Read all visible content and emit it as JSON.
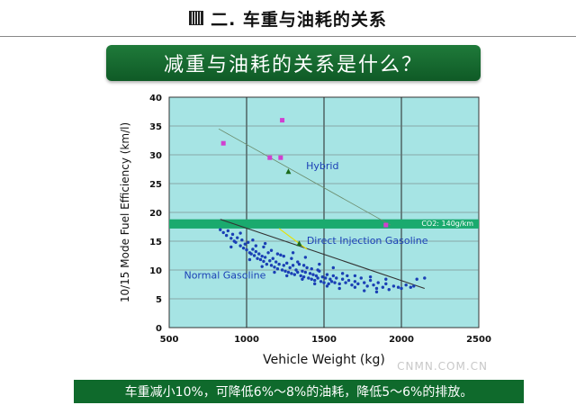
{
  "header": {
    "title": "二. 车重与油耗的关系"
  },
  "banner": {
    "text": "减重与油耗的关系是什么？"
  },
  "caption": {
    "text": "车重减小10%，可降低6%～8%的油耗，降低5～6%的排放。"
  },
  "watermark": {
    "text": "CNMN.COM.CN"
  },
  "colors": {
    "plot_bg": "#a6e4e4",
    "band": "#1aaa6e",
    "points": "#1a3fb5",
    "hybrid": "#d040d0",
    "trend": "#555555"
  },
  "chart_data": {
    "type": "scatter",
    "xlabel": "Vehicle Weight (kg)",
    "ylabel": "10/15 Mode Fuel Efficiency (km/l)",
    "xlim": [
      500,
      2500
    ],
    "ylim": [
      0,
      40
    ],
    "xticks": [
      500,
      1000,
      1500,
      2000,
      2500
    ],
    "yticks": [
      0,
      5,
      10,
      15,
      20,
      25,
      30,
      35,
      40
    ],
    "band": {
      "label": "CO2: 140g/km",
      "y_range": [
        17.2,
        18.8
      ]
    },
    "annotations": [
      {
        "text": "Hybrid",
        "x": 1490,
        "y": 27.5
      },
      {
        "text": "Direct Injection Gasoline",
        "x": 1780,
        "y": 14.5
      },
      {
        "text": "Normal Gasoline",
        "x": 860,
        "y": 8.5
      }
    ],
    "series": [
      {
        "name": "Hybrid",
        "marker": "square",
        "points": [
          [
            1230,
            36
          ],
          [
            850,
            32
          ],
          [
            1150,
            29.5
          ],
          [
            1220,
            29.5
          ],
          [
            1900,
            17.8
          ]
        ]
      },
      {
        "name": "Hybrid (triangle)",
        "marker": "triangle",
        "points": [
          [
            1270,
            27
          ]
        ]
      },
      {
        "name": "Direct Injection Gasoline",
        "marker": "triangle",
        "points": [
          [
            1340,
            14.5
          ]
        ]
      },
      {
        "name": "Normal Gasoline",
        "marker": "dot",
        "points": [
          [
            830,
            17
          ],
          [
            850,
            16.5
          ],
          [
            870,
            16
          ],
          [
            880,
            16.8
          ],
          [
            900,
            15.5
          ],
          [
            910,
            16.2
          ],
          [
            920,
            15
          ],
          [
            930,
            14.8
          ],
          [
            940,
            15.6
          ],
          [
            960,
            14.2
          ],
          [
            970,
            15.2
          ],
          [
            980,
            13.8
          ],
          [
            990,
            14.5
          ],
          [
            1000,
            13.5
          ],
          [
            1010,
            14.8
          ],
          [
            1020,
            13
          ],
          [
            1030,
            12.8
          ],
          [
            1040,
            13.6
          ],
          [
            1050,
            12.5
          ],
          [
            1060,
            13.2
          ],
          [
            1070,
            12
          ],
          [
            1080,
            12.8
          ],
          [
            1090,
            11.8
          ],
          [
            1100,
            12.4
          ],
          [
            1110,
            11.5
          ],
          [
            1120,
            12.2
          ],
          [
            1130,
            11
          ],
          [
            1140,
            13
          ],
          [
            1150,
            11.6
          ],
          [
            1160,
            10.8
          ],
          [
            1170,
            12
          ],
          [
            1180,
            10.5
          ],
          [
            1190,
            11.4
          ],
          [
            1200,
            10.2
          ],
          [
            1210,
            11
          ],
          [
            1220,
            12.6
          ],
          [
            1230,
            10
          ],
          [
            1240,
            10.8
          ],
          [
            1250,
            9.8
          ],
          [
            1260,
            11.2
          ],
          [
            1270,
            9.6
          ],
          [
            1280,
            10.4
          ],
          [
            1290,
            9.4
          ],
          [
            1300,
            10.8
          ],
          [
            1310,
            9.2
          ],
          [
            1320,
            10
          ],
          [
            1330,
            9.6
          ],
          [
            1340,
            11
          ],
          [
            1350,
            9
          ],
          [
            1360,
            9.8
          ],
          [
            1370,
            8.8
          ],
          [
            1380,
            9.6
          ],
          [
            1390,
            10.4
          ],
          [
            1400,
            8.6
          ],
          [
            1410,
            9.4
          ],
          [
            1420,
            8.4
          ],
          [
            1430,
            9.2
          ],
          [
            1440,
            8.2
          ],
          [
            1450,
            9
          ],
          [
            1460,
            8.6
          ],
          [
            1470,
            9.8
          ],
          [
            1480,
            8
          ],
          [
            1490,
            8.8
          ],
          [
            1500,
            7.8
          ],
          [
            1510,
            8.6
          ],
          [
            1520,
            9.2
          ],
          [
            1530,
            7.6
          ],
          [
            1540,
            8.4
          ],
          [
            1550,
            8
          ],
          [
            1560,
            9
          ],
          [
            1570,
            7.8
          ],
          [
            1580,
            8.6
          ],
          [
            1600,
            7.6
          ],
          [
            1620,
            8.4
          ],
          [
            1640,
            7.8
          ],
          [
            1650,
            9
          ],
          [
            1660,
            8.2
          ],
          [
            1680,
            7.4
          ],
          [
            1700,
            8
          ],
          [
            1720,
            7.6
          ],
          [
            1740,
            8.6
          ],
          [
            1760,
            7.8
          ],
          [
            1780,
            7.2
          ],
          [
            1800,
            8.2
          ],
          [
            1820,
            7.4
          ],
          [
            1840,
            6.8
          ],
          [
            1850,
            7.8
          ],
          [
            1880,
            7
          ],
          [
            1900,
            7.6
          ],
          [
            1920,
            6.6
          ],
          [
            1950,
            7.2
          ],
          [
            1980,
            7
          ],
          [
            2000,
            6.8
          ],
          [
            2030,
            7.4
          ],
          [
            2060,
            7
          ],
          [
            2080,
            7.2
          ],
          [
            2100,
            8.4
          ],
          [
            2150,
            8.6
          ],
          [
            1020,
            11.8
          ],
          [
            1060,
            14.2
          ],
          [
            1110,
            14
          ],
          [
            1160,
            13.4
          ],
          [
            1200,
            12.8
          ],
          [
            1240,
            12.4
          ],
          [
            1290,
            12
          ],
          [
            1330,
            11.4
          ],
          [
            1370,
            10.8
          ],
          [
            1420,
            10.2
          ],
          [
            1460,
            10
          ],
          [
            1260,
            9
          ],
          [
            1180,
            9.6
          ],
          [
            1100,
            10.6
          ],
          [
            1360,
            8.4
          ],
          [
            1440,
            7.6
          ],
          [
            1520,
            7.2
          ],
          [
            1600,
            6.8
          ],
          [
            1700,
            7
          ],
          [
            1760,
            6.4
          ],
          [
            1840,
            6.2
          ],
          [
            900,
            14
          ],
          [
            960,
            16.4
          ],
          [
            1040,
            15.2
          ],
          [
            1120,
            14.6
          ],
          [
            1300,
            13
          ],
          [
            1380,
            12.2
          ],
          [
            1470,
            11
          ],
          [
            1560,
            10.4
          ],
          [
            1620,
            9.4
          ],
          [
            1700,
            9
          ],
          [
            1800,
            8.8
          ],
          [
            1900,
            8.4
          ]
        ]
      }
    ],
    "trendlines": [
      {
        "name": "hybrid-trend",
        "from": [
          820,
          34.5
        ],
        "to": [
          1930,
          17.8
        ]
      },
      {
        "name": "normal-gasoline-trend",
        "from": [
          830,
          18.8
        ],
        "to": [
          2150,
          6.8
        ]
      },
      {
        "name": "direct-injection-trend",
        "from": [
          1210,
          17.2
        ],
        "to": [
          1390,
          13.6
        ]
      }
    ]
  }
}
